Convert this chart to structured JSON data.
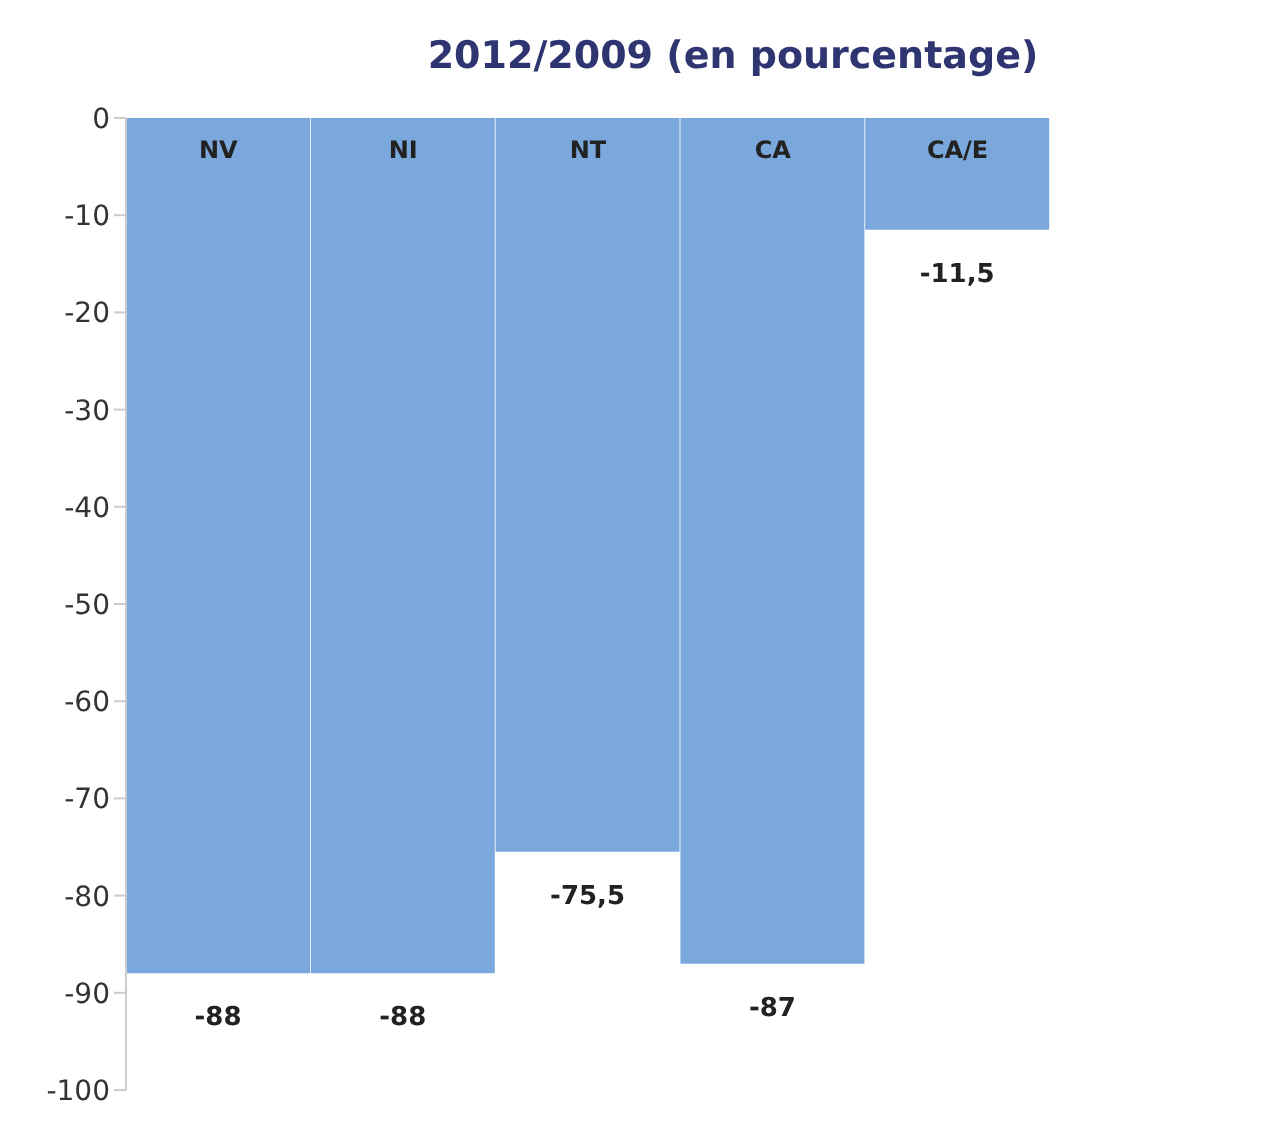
{
  "chart_data": {
    "type": "bar",
    "title": "2012/2009 (en pourcentage)",
    "categories": [
      "NV",
      "NI",
      "NT",
      "CA",
      "CA/E"
    ],
    "values": [
      -88,
      -88,
      -75.5,
      -87,
      -11.5
    ],
    "value_labels": [
      "-88",
      "-88",
      "-75,5",
      "-87",
      "-11,5"
    ],
    "color": "#7aa8dc",
    "ylim": [
      -100,
      0
    ],
    "yticks": [
      0,
      -10,
      -20,
      -30,
      -40,
      -50,
      -60,
      -70,
      -80,
      -90,
      -100
    ]
  }
}
